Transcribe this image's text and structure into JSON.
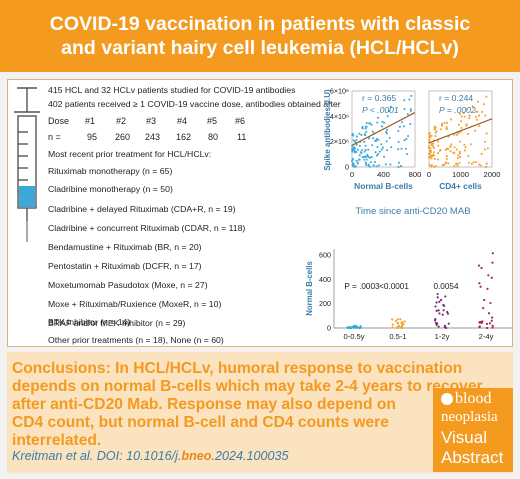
{
  "header": {
    "line1": "COVID-19 vaccination in patients with classic",
    "line2": "and variant hairy cell leukemia (HCL/HCLv)"
  },
  "study": {
    "line1": "415 HCL and 32 HCLv patients studied for COVID-19 antibodies",
    "line2": "402 patients received ≥ 1 COVID-19 vaccine dose, antibodies obtained after",
    "dose_label": "Dose",
    "doses": [
      "#1",
      "#2",
      "#3",
      "#4",
      "#5",
      "#6"
    ],
    "n_label": "n =",
    "n_values": [
      "95",
      "260",
      "243",
      "162",
      "80",
      "11"
    ],
    "treatment_heading": "Most recent prior treatment for HCL/HCLv:",
    "treatments": [
      "Rituximab monotherapy (n = 65)",
      "Cladribine monotherapy (n = 50)",
      "Cladribine + delayed Rituximab (CDA+R, n = 19)",
      "Cladribine + concurrent Rituximab (CDAR, n = 118)",
      "Bendamustine + Rituximab (BR, n = 20)",
      "Pentostatin + Rituximab (DCFR, n = 17)",
      "Moxetumomab Pasudotox (Moxe, n = 27)",
      "Moxe + Rituximab/Ruxience (MoxeR, n = 10)",
      "BRAF and/or MEK Inhibitor (n = 29)",
      "BTK inhibitor (n = 14)",
      "Other prior treatments (n = 18), None (n = 60)"
    ]
  },
  "conclusions": {
    "label": "Conclusions:",
    "line1": " In HCL/HCLv, humoral response to vaccination",
    "line2": "depends on normal B-cells which may take 2-4 years to recover",
    "line3": "after anti-CD20 Mab. Response may also depend on",
    "line4": "CD4 count, but normal B-cell and CD4 counts were",
    "line5": "interrelated.",
    "citation_prefix": "Kreitman et al. DOI: 10.1016/j.",
    "citation_bold": "bneo",
    "citation_suffix": ".2024.100035"
  },
  "badge": {
    "l1": "blood",
    "l2": "neoplasia",
    "l3": "Visual",
    "l4": "Abstract"
  },
  "colors": {
    "orange": "#f39a1f",
    "scatter_blue": "#3aa9d8",
    "scatter_orange": "#f3a12a",
    "trend": "#9a5b2a",
    "purple": "#7a2a7a",
    "dark_red": "#a02a5a"
  },
  "chart_data": [
    {
      "type": "scatter",
      "xlabel": "Normal B-cells",
      "ylabel": "Spike antibodies (I.U)",
      "x_ticks": [
        "0",
        "400",
        "800"
      ],
      "y_ticks": [
        "0",
        "2×10⁶",
        "4×10⁶",
        "6×10⁶"
      ],
      "xlim": [
        0,
        800
      ],
      "ylim": [
        0,
        6000000
      ],
      "r_label": "r = 0.365",
      "p_label": "P < .0001",
      "trend": [
        [
          0,
          1700000
        ],
        [
          800,
          4300000
        ]
      ]
    },
    {
      "type": "scatter",
      "xlabel": "CD4+ cells",
      "x_ticks": [
        "0",
        "1000",
        "2000"
      ],
      "xlim": [
        0,
        2000
      ],
      "ylim": [
        0,
        6000000
      ],
      "r_label": "r = 0.244",
      "p_label": "P = .0002",
      "trend": [
        [
          0,
          1900000
        ],
        [
          2000,
          3800000
        ]
      ]
    },
    {
      "type": "scatter",
      "title": "Time since anti-CD20 MAB",
      "ylabel": "Normal B-cells",
      "categories": [
        "0-0.5y",
        "0.5-1",
        "1-2y",
        "2-4y"
      ],
      "y_ticks": [
        "0",
        "200",
        "400",
        "600"
      ],
      "ylim": [
        0,
        650
      ],
      "p_labels": [
        "P = .0003",
        "<0.0001",
        "0.0054"
      ]
    }
  ]
}
